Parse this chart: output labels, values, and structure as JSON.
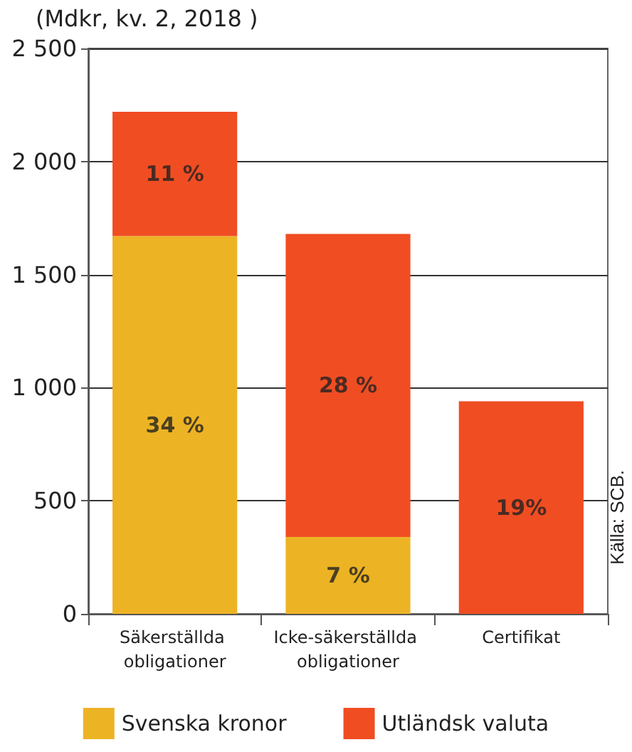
{
  "chart_data": {
    "type": "bar",
    "title": "(Mdkr, kv. 2, 2018 )",
    "stacked": true,
    "categories": [
      "Säkerställda obligationer",
      "Icke-säkerställda obligationer",
      "Certifikat"
    ],
    "series": [
      {
        "name": "Svenska kronor",
        "color": "#ecb324",
        "values": [
          1670,
          340,
          0
        ]
      },
      {
        "name": "Utländsk valuta",
        "color": "#f04d23",
        "values": [
          550,
          1340,
          940
        ]
      }
    ],
    "ylim": [
      0,
      2500
    ],
    "yticks": [
      0,
      500,
      {
        "value": 1000,
        "label": "1 000"
      },
      {
        "value": 1500,
        "label": "1 500"
      },
      {
        "value": 2000,
        "label": "2 000"
      },
      {
        "value": 2500,
        "label": "2 500"
      }
    ],
    "grid": "y",
    "legend": "bottom",
    "annotations": [
      "Källa: SCB.",
      "34 %",
      "7 %",
      "11 %",
      "28 %",
      "19%"
    ]
  }
}
